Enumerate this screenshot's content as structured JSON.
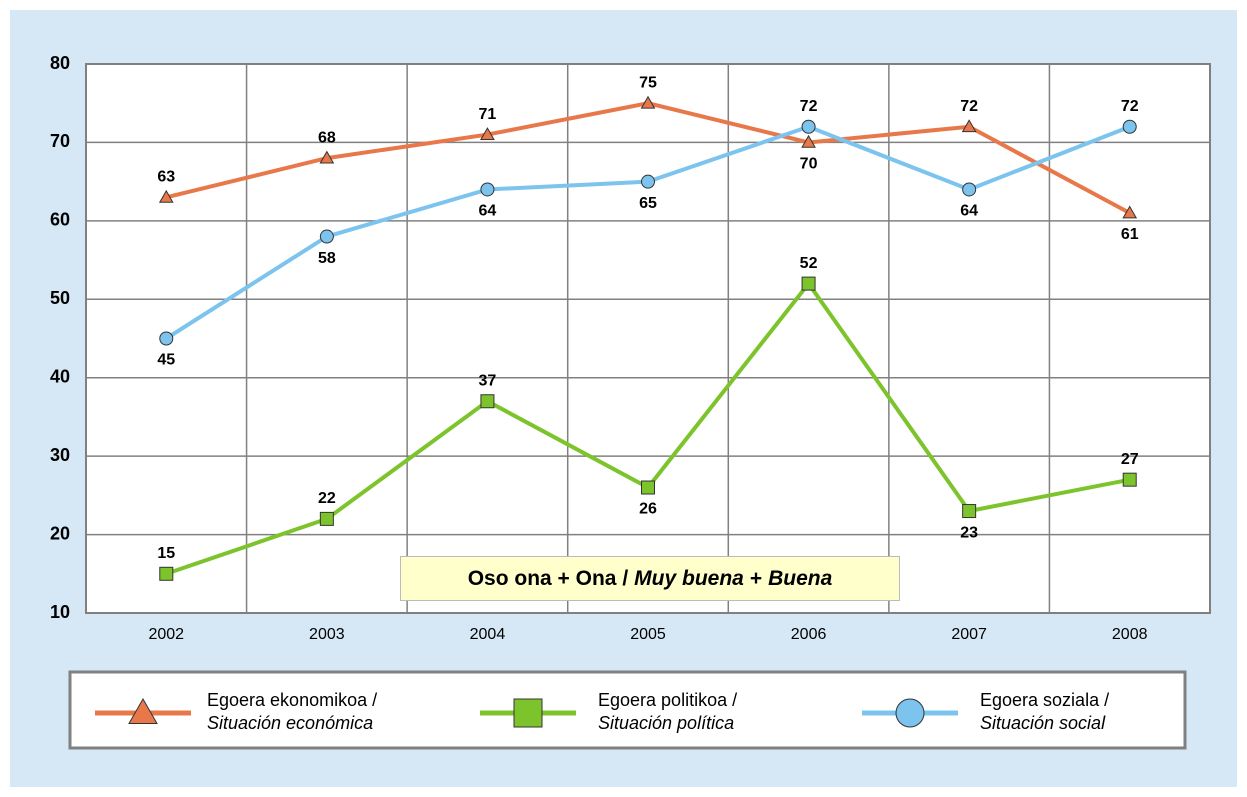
{
  "chart_data": {
    "type": "line",
    "categories": [
      "2002",
      "2003",
      "2004",
      "2005",
      "2006",
      "2007",
      "2008"
    ],
    "series": [
      {
        "name": "Egoera ekonomikoa /",
        "name_es": "Situación económica",
        "color": "#e8784a",
        "marker": "triangle",
        "values": [
          63,
          68,
          71,
          75,
          70,
          72,
          61
        ]
      },
      {
        "name": "Egoera politikoa /",
        "name_es": "Situación política",
        "color": "#7dc42c",
        "marker": "square",
        "values": [
          15,
          22,
          37,
          26,
          52,
          23,
          27
        ]
      },
      {
        "name": "Egoera soziala /",
        "name_es": "Situación social",
        "color": "#7cc4ee",
        "marker": "circle",
        "values": [
          45,
          58,
          64,
          65,
          72,
          64,
          72
        ]
      }
    ],
    "ylim": [
      10,
      80
    ],
    "yticks": [
      10,
      20,
      30,
      40,
      50,
      60,
      70,
      80
    ],
    "grid": true,
    "annotation": [
      "Oso ona + Ona /",
      "Muy buena",
      "+",
      "Buena"
    ]
  }
}
